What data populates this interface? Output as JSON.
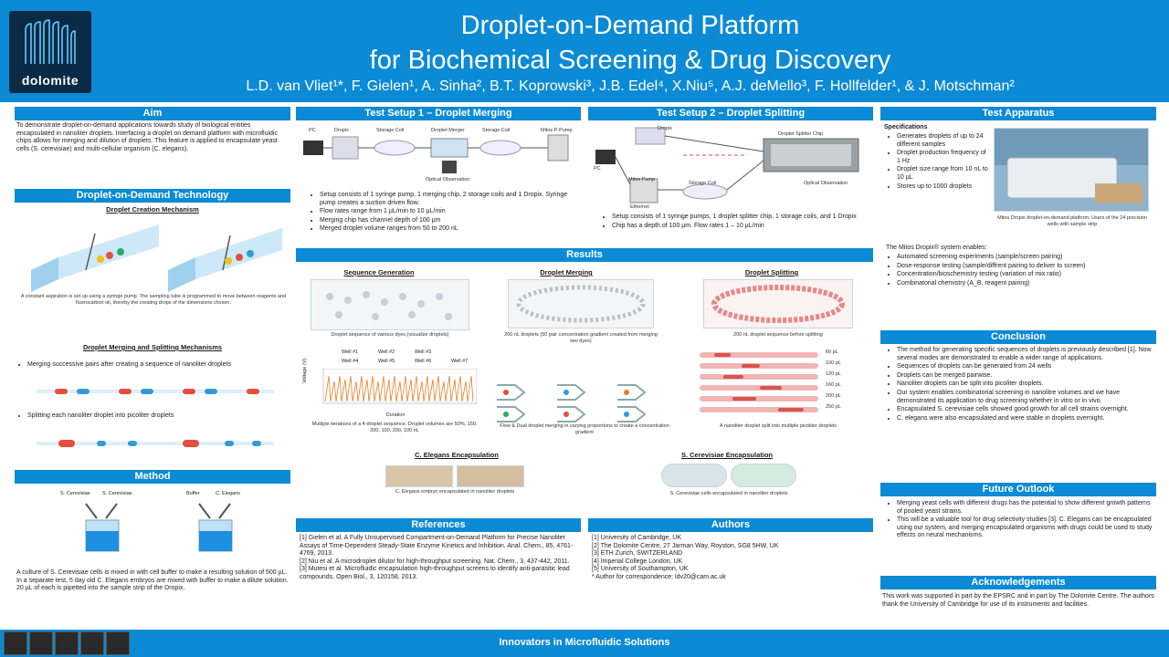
{
  "header": {
    "logo_text": "dolomite",
    "title_line1": "Droplet-on-Demand Platform",
    "title_line2": "for Biochemical Screening & Drug Discovery",
    "authors": "L.D. van Vliet¹*, F. Gielen¹, A. Sinha², B.T. Koprowski³, J.B. Edel⁴, X.Niu⁵, A.J. deMello³, F. Hollfelder¹, & J. Motschman²"
  },
  "aim": {
    "heading": "Aim",
    "text": "To demonstrate droplet-on-demand applications towards study of biological entities encapsulated in nanoliter droplets. Interfacing a droplet on demand platform with microfluidic chips allows for merging and dilution of droplets. This feature is applied to encapsulate yeast cells (S. cerevisiae) and multi-cellular organism (C. elegans)."
  },
  "dod": {
    "heading": "Droplet-on-Demand Technology",
    "sub1": "Droplet Creation Mechanism",
    "cap1": "A constant aspiration is set up using a syringe pump. The sampling tube is programmed to move between reagents and fluorocarbon oil, thereby the creating drops of the dimensions chosen.",
    "sub2": "Droplet Merging and Splitting Mechanisms",
    "b1": "Merging successive pairs after creating a sequence of nanoliter droplets",
    "b2": "Splitting each nanoliter droplet into picoliter droplets"
  },
  "method": {
    "heading": "Method",
    "labels": [
      "S. Cerevisiae",
      "S. Cerevisiae",
      "Buffer",
      "C. Elegans"
    ],
    "text": "A culture of S. Cerevisiae cells is mixed in with cell buffer to make a resulting solution of 500 µL. In a separate test, 5 day old C. Elegans embryos are mixed with buffer to make a dilute solution. 20 µL of each is pipetted into the sample strip of the Dropix."
  },
  "setup1": {
    "heading": "Test Setup 1 – Droplet Merging",
    "labels": [
      "PC",
      "Dropix",
      "Storage Coil",
      "Droplet Merger",
      "Storage Coil",
      "Mitos P-Pump",
      "Optical Observation"
    ],
    "bullets": [
      "Setup consists of 1 syringe pump, 1 merging chip, 2 storage coils and 1 Dropix. Syringe pump creates a suction driven flow.",
      "Flow rates range from 1 µL/min to 10 µL/min",
      "Merging chip has channel depth of 100 µm",
      "Merged droplet volume ranges from 50 to 200 nL"
    ]
  },
  "setup2": {
    "heading": "Test Setup 2 – Droplet Splitting",
    "labels": [
      "Dropix",
      "PC",
      "Mitos Pump",
      "Storage Coil",
      "Droplet Splitter Chip",
      "Optical Observation",
      "Ethernet"
    ],
    "bullets": [
      "Setup consists of 1 syringe pumps, 1 droplet splitter chip, 1 storage coils, and 1 Dropix",
      "Chip has a depth of 100 µm. Flow rates 1 – 10 µL/min"
    ]
  },
  "apparatus": {
    "heading": "Test Apparatus",
    "spec_heading": "Specifications",
    "specs": [
      "Generates droplets of up to 24 different samples",
      "Droplet production frequency of 1 Hz",
      "Droplet size range from 10 nL to 10 µL",
      "Stores up to 1000 droplets"
    ],
    "photo_caption": "Mitos Dropix droplet-on-demand platform. Users of the 24 precision wells with sample strip",
    "system_heading": "The Mitos Dropix® system enables:",
    "system": [
      "Automated screening experiments (sample/screen pairing)",
      "Dose-response testing (sample/diffrent pairing to deliver to screen)",
      "Concentration/bioschemistry testing (variation of mix ratio)",
      "Combinatorial chemistry (A_B, reagent pairing)"
    ]
  },
  "results": {
    "heading": "Results",
    "sub1": "Sequence Generation",
    "sub2": "Droplet Merging",
    "sub3": "Droplet Splitting",
    "cap1": "Droplet sequence of various dyes (visualize droplets)",
    "cap2": "200 nL droplets (50 pair concentration gradient created from merging two dyes)",
    "cap3": "200 nL droplet sequence before splitting",
    "legend": [
      "Well #1",
      "Well #2",
      "Well #3",
      "Well #4",
      "Well #5",
      "Well #6",
      "Well #7"
    ],
    "ylabel": "Voltage (V)",
    "xlabel": "Duration",
    "cap4": "Multiple iterations of a 4-droplet sequence. Droplet volumes are 50%, 150, 200, 100, 200, 100 nL",
    "cap5": "Flow & Dual droplet merging in varying proportions to create a concentration gradient",
    "cap6": "A nanoliter droplet split into multiple picoliter droplets",
    "split_labels": [
      "60 pL",
      "100 pL",
      "120 pL",
      "160 pL",
      "200 pL",
      "250 pL"
    ],
    "sub4": "C. Elegans Encapsulation",
    "cap7": "C. Elegans embryo encapsulated in nanoliter droplets",
    "sub5": "S. Cerevisiae Encapsulation",
    "cap8": "S. Cerevisiae cells encapsulated in nanoliter droplets"
  },
  "conclusion": {
    "heading": "Conclusion",
    "bullets": [
      "The method for generating specific sequences of droplets is previously described [1]. Now several modes are demonstrated to enable a wider range of applications.",
      "Sequences of droplets can be generated from 24 wells",
      "Droplets can be merged pairwise.",
      "Nanoliter droplets can be split into picoliter droplets.",
      "Our system enables combinatorial screening in nanolitre volumes and we have demonstrated its application to drug screening whether in vitro or in vivo.",
      "Encapsulated S. cerevisiae cells showed good growth for all cell strains overnight.",
      "C. elegans were also encapsulated and were stable in droplets overnight."
    ]
  },
  "outlook": {
    "heading": "Future Outlook",
    "bullets": [
      "Merging yeast cells with different drugs has the potential to show different growth patterns of pooled yeast strains.",
      "This will be a valuable tool for drug selectivity studies [3]. C. Elegans can be encapsulated using our system, and merging encapsulated organisms with drugs could be used to study effects on neural mechanisms."
    ]
  },
  "ack": {
    "heading": "Acknowledgements",
    "text": "This work was supported in part by the EPSRC and in part by The Dolomite Centre. The authors thank the University of Cambridge for use of its instruments and facilities."
  },
  "references": {
    "heading": "References",
    "items": [
      "[1] Gielen et al. A Fully Unsupervised Compartment-on-Demand Platform for Precise Nanoliter Assays of Time-Dependent Steady-State Enzyme Kinetics and Inhibition. Anal. Chem., 85, 4761-4769, 2013.",
      "[2] Niu et al. A microdroplet dilutor for high-throughput screening. Nat. Chem., 3, 437-442, 2011.",
      "[3] Mutesi et al. Microfluidic encapsulation high-throughput screens to identify anti-parasitic lead compounds. Open Biol., 3, 120158, 2013."
    ]
  },
  "authors_box": {
    "heading": "Authors",
    "items": [
      "[1] University of Cambridge, UK",
      "[2] The Dolomite Centre, 27 Jarman Way, Royston, SG8 5HW, UK",
      "[3] ETH Zurich, SWITZERLAND",
      "[4] Imperial College London, UK",
      "[5] University of Southampton, UK",
      "* Author for correspondence: ldv20@cam.ac.uk"
    ]
  },
  "footer": {
    "text": "Innovators in Microfluidic Solutions"
  },
  "colors": {
    "brand": "#0b8ad6",
    "logo_bg": "#0a2a45"
  }
}
